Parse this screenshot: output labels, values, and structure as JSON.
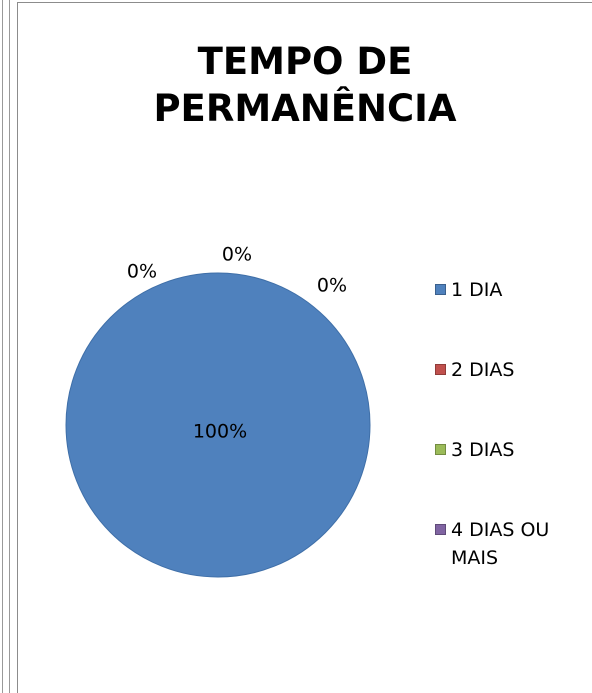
{
  "chart_data": {
    "type": "pie",
    "title": "TEMPO DE PERMANÊNCIA",
    "categories": [
      "1 DIA",
      "2 DIAS",
      "3 DIAS",
      "4 DIAS OU MAIS"
    ],
    "values": [
      100,
      0,
      0,
      0
    ],
    "value_labels": [
      "100%",
      "0%",
      "0%",
      "0%"
    ],
    "colors": [
      "#4f81bd",
      "#c0504d",
      "#9bbb59",
      "#8064a2"
    ],
    "legend": "right"
  }
}
